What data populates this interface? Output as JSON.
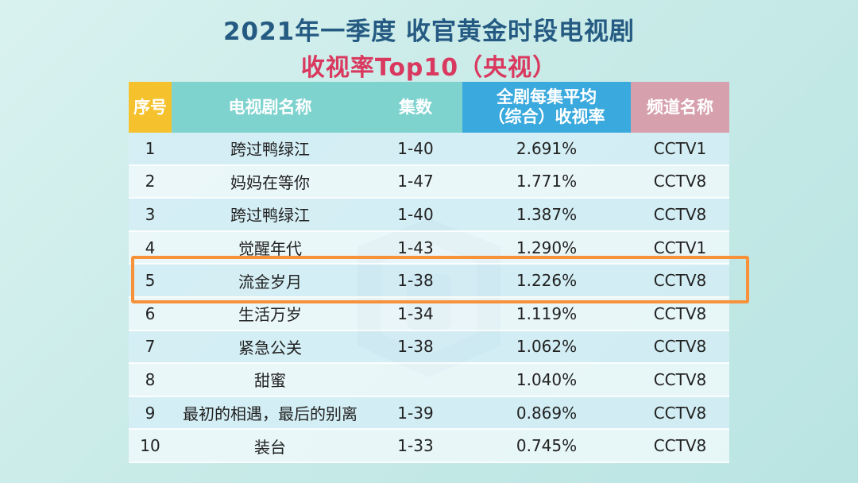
{
  "title_line1": "2021年一季度 收官黄金时段电视剧",
  "title_line2": "收视率Top10（央视）",
  "headers": {
    "index": "序号",
    "name": "电视剧名称",
    "episodes": "集数",
    "rate_line1": "全剧每集平均",
    "rate_line2": "（综合）收视率",
    "channel": "频道名称"
  },
  "rows": [
    {
      "index": "1",
      "name": "跨过鸭绿江",
      "episodes": "1-40",
      "rate": "2.691%",
      "channel": "CCTV1"
    },
    {
      "index": "2",
      "name": "妈妈在等你",
      "episodes": "1-47",
      "rate": "1.771%",
      "channel": "CCTV8"
    },
    {
      "index": "3",
      "name": "跨过鸭绿江",
      "episodes": "1-40",
      "rate": "1.387%",
      "channel": "CCTV8"
    },
    {
      "index": "4",
      "name": "觉醒年代",
      "episodes": "1-43",
      "rate": "1.290%",
      "channel": "CCTV1"
    },
    {
      "index": "5",
      "name": "流金岁月",
      "episodes": "1-38",
      "rate": "1.226%",
      "channel": "CCTV8"
    },
    {
      "index": "6",
      "name": "生活万岁",
      "episodes": "1-34",
      "rate": "1.119%",
      "channel": "CCTV8"
    },
    {
      "index": "7",
      "name": "紧急公关",
      "episodes": "1-38",
      "rate": "1.062%",
      "channel": "CCTV8"
    },
    {
      "index": "8",
      "name": "甜蜜",
      "episodes": "",
      "rate": "1.040%",
      "channel": "CCTV8"
    },
    {
      "index": "9",
      "name": "最初的相遇，最后的别离",
      "episodes": "1-39",
      "rate": "0.869%",
      "channel": "CCTV8"
    },
    {
      "index": "10",
      "name": "装台",
      "episodes": "1-33",
      "rate": "0.745%",
      "channel": "CCTV8"
    }
  ],
  "highlight_row_index": "5",
  "colors": {
    "title_blue": "#255a82",
    "title_red": "#d9395f",
    "header_index": "#f5c22e",
    "header_teal": "#7fd3cf",
    "header_rate": "#3aa9dd",
    "header_channel": "#d6a0ad",
    "highlight": "#f7923a"
  }
}
